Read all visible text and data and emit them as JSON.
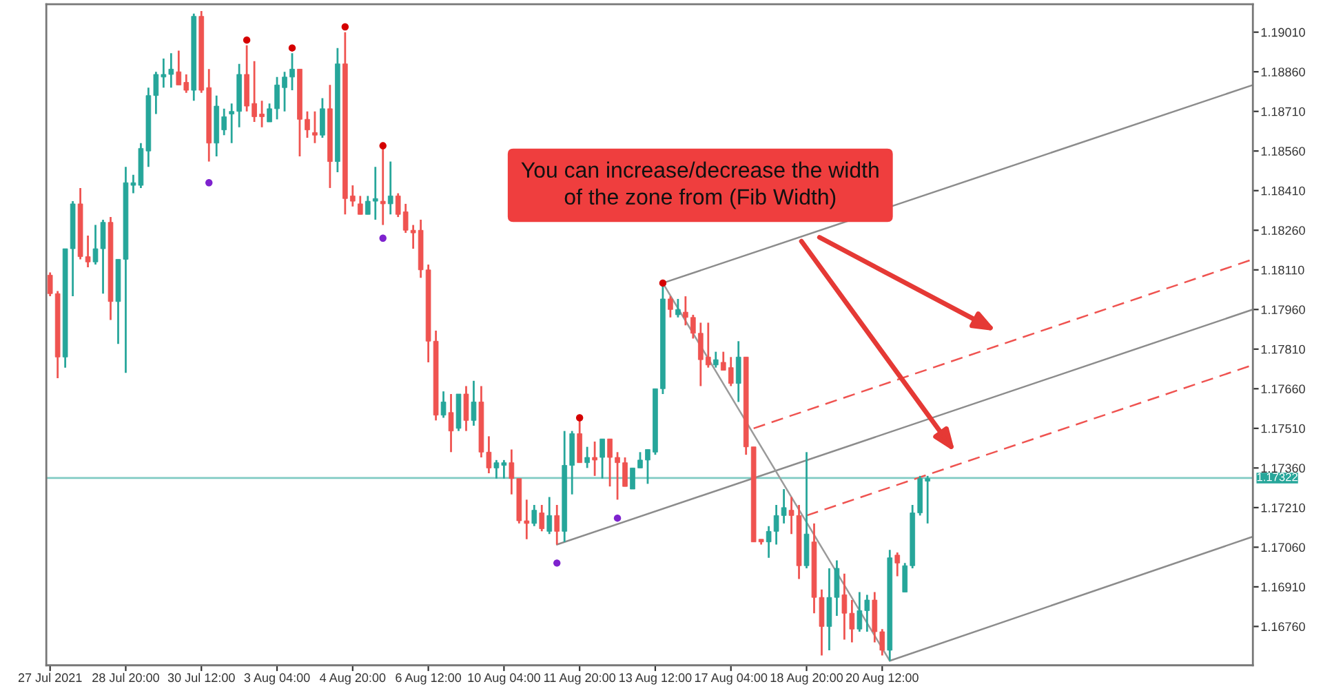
{
  "chart_data": {
    "type": "candlestick",
    "categories": [
      "27 Jul 2021",
      null,
      null,
      null,
      null,
      null,
      null,
      null,
      null,
      null,
      "28 Jul 20:00",
      null,
      null,
      null,
      null,
      null,
      null,
      null,
      null,
      null,
      "30 Jul 12:00",
      null,
      null,
      null,
      null,
      null,
      null,
      null,
      null,
      null,
      "3 Aug 04:00",
      null,
      null,
      null,
      null,
      null,
      null,
      null,
      null,
      null,
      "4 Aug 20:00",
      null,
      null,
      null,
      null,
      null,
      null,
      null,
      null,
      null,
      "6 Aug 12:00",
      null,
      null,
      null,
      null,
      null,
      null,
      null,
      null,
      null,
      "10 Aug 04:00",
      null,
      null,
      null,
      null,
      null,
      null,
      null,
      null,
      null,
      "11 Aug 20:00",
      null,
      null,
      null,
      null,
      null,
      null,
      null,
      null,
      null,
      "13 Aug 12:00",
      null,
      null,
      null,
      null,
      null,
      null,
      null,
      null,
      null,
      "17 Aug 04:00",
      null,
      null,
      null,
      null,
      null,
      null,
      null,
      null,
      null,
      "18 Aug 20:00",
      null,
      null,
      null,
      null,
      null,
      null,
      null,
      null,
      null,
      "20 Aug 12:00",
      null,
      null,
      null,
      null,
      null,
      null,
      null,
      null,
      null,
      null,
      null,
      null,
      null,
      null,
      null,
      null,
      null,
      null,
      null,
      null,
      null,
      null,
      null,
      null,
      null,
      null,
      null,
      null,
      null,
      null,
      null,
      null,
      null,
      null,
      null,
      null,
      null,
      null,
      null,
      null,
      null,
      null,
      null,
      null,
      null,
      null,
      null,
      null,
      null
    ],
    "ohlc": [
      [
        1.1809,
        1.181,
        1.1801,
        1.1802
      ],
      [
        1.1802,
        1.1803,
        1.177,
        1.1778
      ],
      [
        1.1778,
        1.1819,
        1.1774,
        1.1819
      ],
      [
        1.1819,
        1.1837,
        1.1801,
        1.1836
      ],
      [
        1.1836,
        1.1842,
        1.1815,
        1.1816
      ],
      [
        1.1816,
        1.1824,
        1.1812,
        1.1814
      ],
      [
        1.1814,
        1.1828,
        1.1813,
        1.1819
      ],
      [
        1.1819,
        1.183,
        1.1802,
        1.1829
      ],
      [
        1.1829,
        1.1831,
        1.1792,
        1.1799
      ],
      [
        1.1799,
        1.1815,
        1.1783,
        1.1815
      ],
      [
        1.1815,
        1.185,
        1.1772,
        1.1844
      ],
      [
        1.1843,
        1.1847,
        1.184,
        1.1844
      ],
      [
        1.1843,
        1.1859,
        1.1842,
        1.1857
      ],
      [
        1.1856,
        1.188,
        1.185,
        1.1877
      ],
      [
        1.1877,
        1.1886,
        1.187,
        1.1885
      ],
      [
        1.1884,
        1.1891,
        1.188,
        1.1885
      ],
      [
        1.1885,
        1.1893,
        1.188,
        1.1887
      ],
      [
        1.1886,
        1.1894,
        1.1881,
        1.1881
      ],
      [
        1.1882,
        1.1885,
        1.1878,
        1.1879
      ],
      [
        1.1879,
        1.1908,
        1.1875,
        1.1907
      ],
      [
        1.1907,
        1.1909,
        1.1878,
        1.1879
      ],
      [
        1.188,
        1.1887,
        1.1852,
        1.1859
      ],
      [
        1.1859,
        1.1877,
        1.1854,
        1.1873
      ],
      [
        1.1864,
        1.1872,
        1.1862,
        1.1869
      ],
      [
        1.187,
        1.1874,
        1.1859,
        1.1871
      ],
      [
        1.1871,
        1.1889,
        1.1865,
        1.1885
      ],
      [
        1.1885,
        1.1896,
        1.1871,
        1.1873
      ],
      [
        1.1874,
        1.189,
        1.1867,
        1.1869
      ],
      [
        1.187,
        1.1875,
        1.1865,
        1.1869
      ],
      [
        1.1867,
        1.1874,
        1.1867,
        1.1872
      ],
      [
        1.1872,
        1.1884,
        1.1868,
        1.1881
      ],
      [
        1.188,
        1.1886,
        1.1871,
        1.1884
      ],
      [
        1.1884,
        1.1893,
        1.1879,
        1.1887
      ],
      [
        1.1887,
        1.1887,
        1.1854,
        1.1868
      ],
      [
        1.1868,
        1.1871,
        1.1861,
        1.1864
      ],
      [
        1.1863,
        1.1871,
        1.1859,
        1.1862
      ],
      [
        1.1862,
        1.1876,
        1.1861,
        1.1872
      ],
      [
        1.1872,
        1.1881,
        1.1842,
        1.1852
      ],
      [
        1.1852,
        1.1895,
        1.1848,
        1.1889
      ],
      [
        1.1889,
        1.1901,
        1.1832,
        1.1838
      ],
      [
        1.1839,
        1.1843,
        1.1835,
        1.1837
      ],
      [
        1.1836,
        1.1839,
        1.1832,
        1.1832
      ],
      [
        1.1832,
        1.1839,
        1.1832,
        1.1837
      ],
      [
        1.1837,
        1.185,
        1.183,
        1.1838
      ],
      [
        1.1837,
        1.1858,
        1.1828,
        1.1836
      ],
      [
        1.1836,
        1.1852,
        1.1832,
        1.1839
      ],
      [
        1.1839,
        1.184,
        1.1831,
        1.1832
      ],
      [
        1.1833,
        1.1836,
        1.1825,
        1.1826
      ],
      [
        1.1826,
        1.1828,
        1.1819,
        1.1825
      ],
      [
        1.1826,
        1.183,
        1.1808,
        1.1811
      ],
      [
        1.1811,
        1.1813,
        1.1776,
        1.1784
      ],
      [
        1.1784,
        1.1788,
        1.1754,
        1.1756
      ],
      [
        1.1756,
        1.1765,
        1.1755,
        1.1761
      ],
      [
        1.1757,
        1.1764,
        1.1742,
        1.175
      ],
      [
        1.1751,
        1.1764,
        1.175,
        1.1764
      ],
      [
        1.1764,
        1.1767,
        1.175,
        1.1754
      ],
      [
        1.1754,
        1.1769,
        1.1752,
        1.1761
      ],
      [
        1.1761,
        1.1767,
        1.174,
        1.1742
      ],
      [
        1.1742,
        1.1748,
        1.1734,
        1.1736
      ],
      [
        1.1736,
        1.1739,
        1.1732,
        1.1738
      ],
      [
        1.1737,
        1.1739,
        1.1732,
        1.1738
      ],
      [
        1.1738,
        1.1743,
        1.1726,
        1.1732
      ],
      [
        1.1732,
        1.1732,
        1.1715,
        1.1716
      ],
      [
        1.1716,
        1.1724,
        1.1709,
        1.1715
      ],
      [
        1.1715,
        1.1722,
        1.1714,
        1.172
      ],
      [
        1.1719,
        1.1722,
        1.1712,
        1.1713
      ],
      [
        1.1712,
        1.1725,
        1.1711,
        1.1718
      ],
      [
        1.1718,
        1.1722,
        1.1707,
        1.1712
      ],
      [
        1.1712,
        1.175,
        1.1708,
        1.1737
      ],
      [
        1.1737,
        1.175,
        1.1726,
        1.1749
      ],
      [
        1.1749,
        1.1754,
        1.1738,
        1.1738
      ],
      [
        1.1738,
        1.1744,
        1.1736,
        1.174
      ],
      [
        1.174,
        1.1746,
        1.1733,
        1.1739
      ],
      [
        1.174,
        1.1747,
        1.1732,
        1.1747
      ],
      [
        1.1747,
        1.1747,
        1.1729,
        1.174
      ],
      [
        1.174,
        1.1742,
        1.1724,
        1.1738
      ],
      [
        1.1738,
        1.174,
        1.1729,
        1.1729
      ],
      [
        1.1728,
        1.1736,
        1.1728,
        1.1736
      ],
      [
        1.1736,
        1.1742,
        1.1736,
        1.1739
      ],
      [
        1.1739,
        1.1743,
        1.173,
        1.1743
      ],
      [
        1.1742,
        1.1766,
        1.1741,
        1.1766
      ],
      [
        1.1766,
        1.1806,
        1.1764,
        1.18
      ],
      [
        1.18,
        1.1801,
        1.1793,
        1.1796
      ],
      [
        1.1794,
        1.18,
        1.1793,
        1.1796
      ],
      [
        1.1795,
        1.1801,
        1.179,
        1.1793
      ],
      [
        1.1793,
        1.1794,
        1.1785,
        1.1787
      ],
      [
        1.1787,
        1.1791,
        1.1767,
        1.1777
      ],
      [
        1.1778,
        1.1791,
        1.1774,
        1.1775
      ],
      [
        1.1775,
        1.178,
        1.1774,
        1.1777
      ],
      [
        1.1776,
        1.178,
        1.1773,
        1.1773
      ],
      [
        1.1774,
        1.1778,
        1.1767,
        1.1768
      ],
      [
        1.1768,
        1.1784,
        1.1761,
        1.1778
      ],
      [
        1.1778,
        1.1778,
        1.1741,
        1.1744
      ],
      [
        1.1744,
        1.1744,
        1.1708,
        1.1708
      ],
      [
        1.1709,
        1.1709,
        1.1707,
        1.1708
      ],
      [
        1.1708,
        1.1714,
        1.1702,
        1.1712
      ],
      [
        1.1712,
        1.1722,
        1.1707,
        1.1718
      ],
      [
        1.1718,
        1.1728,
        1.1715,
        1.1721
      ],
      [
        1.172,
        1.1725,
        1.1711,
        1.1718
      ],
      [
        1.1718,
        1.1722,
        1.1694,
        1.1699
      ],
      [
        1.1699,
        1.1742,
        1.1698,
        1.1711
      ],
      [
        1.1708,
        1.1715,
        1.1681,
        1.1687
      ],
      [
        1.1687,
        1.169,
        1.1665,
        1.1676
      ],
      [
        1.1676,
        1.1698,
        1.1667,
        1.1687
      ],
      [
        1.1687,
        1.1701,
        1.168,
        1.1698
      ],
      [
        1.1688,
        1.1696,
        1.1671,
        1.1681
      ],
      [
        1.1681,
        1.1686,
        1.167,
        1.1675
      ],
      [
        1.1675,
        1.1689,
        1.1674,
        1.1682
      ],
      [
        1.1682,
        1.1688,
        1.1674,
        1.1686
      ],
      [
        1.1686,
        1.1689,
        1.167,
        1.1674
      ],
      [
        1.1674,
        1.1675,
        1.1665,
        1.1667
      ],
      [
        1.1667,
        1.1705,
        1.1663,
        1.1702
      ],
      [
        1.1703,
        1.1704,
        1.1695,
        1.17
      ],
      [
        1.1689,
        1.17,
        1.1689,
        1.1699
      ],
      [
        1.1699,
        1.1722,
        1.1698,
        1.1719
      ],
      [
        1.1719,
        1.1733,
        1.1718,
        1.1732
      ],
      [
        1.1731,
        1.1733,
        1.1715,
        1.1732
      ],
      null,
      null,
      null,
      null,
      null,
      null,
      null,
      null,
      null,
      null,
      null,
      null,
      null,
      null,
      null,
      null,
      null,
      null,
      null,
      null,
      null,
      null,
      null,
      null,
      null,
      null,
      null,
      null,
      null,
      null,
      null,
      null,
      null,
      null,
      null,
      null,
      null,
      null,
      null,
      null,
      null,
      null,
      null
    ],
    "colors": [
      "#ef5350",
      "#ef5350",
      "#26a69a",
      "#26a69a",
      "#ef5350",
      "#ef5350",
      "#26a69a",
      "#26a69a",
      "#ef5350",
      "#26a69a",
      "#26a69a",
      "#26a69a",
      "#26a69a",
      "#26a69a",
      "#26a69a",
      "#26a69a",
      "#26a69a",
      "#ef5350",
      "#ef5350",
      "#26a69a",
      "#ef5350",
      "#ef5350",
      "#26a69a",
      "#26a69a",
      "#26a69a",
      "#26a69a",
      "#ef5350",
      "#ef5350",
      "#ef5350",
      "#26a69a",
      "#26a69a",
      "#26a69a",
      "#26a69a",
      "#ef5350",
      "#ef5350",
      "#ef5350",
      "#26a69a",
      "#ef5350",
      "#26a69a",
      "#ef5350",
      "#ef5350",
      "#ef5350",
      "#26a69a",
      "#26a69a",
      "#ef5350",
      "#26a69a",
      "#ef5350",
      "#ef5350",
      "#ef5350",
      "#ef5350",
      "#ef5350",
      "#ef5350",
      "#26a69a",
      "#ef5350",
      "#26a69a",
      "#ef5350",
      "#26a69a",
      "#ef5350",
      "#ef5350",
      "#26a69a",
      "#26a69a",
      "#ef5350",
      "#ef5350",
      "#ef5350",
      "#26a69a",
      "#ef5350",
      "#26a69a",
      "#ef5350",
      "#26a69a",
      "#26a69a",
      "#ef5350",
      "#26a69a",
      "#ef5350",
      "#26a69a",
      "#ef5350",
      "#ef5350",
      "#ef5350",
      "#26a69a",
      "#26a69a",
      "#26a69a",
      "#26a69a",
      "#26a69a",
      "#ef5350",
      "#26a69a",
      "#ef5350",
      "#ef5350",
      "#ef5350",
      "#ef5350",
      "#26a69a",
      "#ef5350",
      "#ef5350",
      "#26a69a",
      "#ef5350",
      "#ef5350",
      "#ef5350",
      "#26a69a",
      "#26a69a",
      "#26a69a",
      "#ef5350",
      "#ef5350",
      "#26a69a",
      "#ef5350",
      "#ef5350",
      "#26a69a",
      "#26a69a",
      "#ef5350",
      "#ef5350",
      "#26a69a",
      "#26a69a",
      "#ef5350",
      "#ef5350",
      "#26a69a",
      "#ef5350",
      "#26a69a",
      "#26a69a",
      "#26a69a",
      "#26a69a",
      null,
      null,
      null,
      null,
      null,
      null,
      null,
      null,
      null,
      null,
      null,
      null,
      null,
      null,
      null,
      null,
      null,
      null,
      null,
      null,
      null,
      null,
      null,
      null,
      null,
      null,
      null,
      null,
      null,
      null,
      null,
      null,
      null,
      null,
      null,
      null,
      null,
      null,
      null,
      null,
      null,
      null,
      null
    ],
    "series": [
      {
        "type": "line",
        "color": "#8c8c8c",
        "line_style": "solid",
        "values": [
          null,
          null,
          null,
          null,
          null,
          null,
          null,
          null,
          null,
          null,
          null,
          null,
          null,
          null,
          null,
          null,
          null,
          null,
          null,
          null,
          null,
          null,
          null,
          null,
          null,
          null,
          null,
          null,
          null,
          null,
          null,
          null,
          null,
          null,
          null,
          null,
          null,
          null,
          null,
          null,
          null,
          null,
          null,
          null,
          null,
          null,
          null,
          null,
          null,
          null,
          null,
          null,
          null,
          null,
          null,
          null,
          null,
          null,
          null,
          null,
          null,
          null,
          null,
          null,
          null,
          null,
          null,
          1.1707,
          null,
          null,
          null,
          null,
          null,
          null,
          null,
          null,
          null,
          null,
          null,
          null,
          null,
          null,
          null,
          null,
          null,
          null,
          null,
          null,
          null,
          null,
          null,
          null,
          null,
          null,
          null,
          null,
          null,
          null,
          null,
          null,
          null,
          null,
          null,
          null,
          null,
          null,
          null,
          null,
          null,
          null,
          null,
          null,
          null,
          null,
          null,
          null,
          null,
          null,
          null,
          null,
          null,
          null,
          null,
          null,
          null,
          null,
          null,
          null,
          null,
          null,
          null,
          null,
          null,
          null,
          null,
          null,
          null,
          null,
          null,
          null,
          null,
          null,
          null,
          null,
          null,
          null,
          null,
          null,
          null,
          null,
          null,
          null,
          null,
          null,
          null,
          null,
          null,
          null,
          null,
          1.1796
        ]
      },
      {
        "type": "line",
        "color": "#8c8c8c",
        "line_style": "solid",
        "values": [
          null,
          null,
          null,
          null,
          null,
          null,
          null,
          null,
          null,
          null,
          null,
          null,
          null,
          null,
          null,
          null,
          null,
          null,
          null,
          null,
          null,
          null,
          null,
          null,
          null,
          null,
          null,
          null,
          null,
          null,
          null,
          null,
          null,
          null,
          null,
          null,
          null,
          null,
          null,
          null,
          null,
          null,
          null,
          null,
          null,
          null,
          null,
          null,
          null,
          null,
          null,
          null,
          null,
          null,
          null,
          null,
          null,
          null,
          null,
          null,
          null,
          null,
          null,
          null,
          null,
          null,
          null,
          null,
          null,
          null,
          null,
          null,
          null,
          null,
          null,
          null,
          null,
          null,
          null,
          null,
          null,
          1.1806,
          null,
          null,
          null,
          null,
          null,
          null,
          null,
          null,
          null,
          null,
          null,
          null,
          null,
          null,
          null,
          null,
          null,
          null,
          null,
          null,
          null,
          null,
          null,
          null,
          null,
          null,
          null,
          null,
          null,
          null,
          null,
          null,
          null,
          null,
          null,
          null,
          null,
          null,
          null,
          null,
          null,
          null,
          null,
          null,
          null,
          null,
          null,
          null,
          null,
          null,
          null,
          null,
          null,
          null,
          null,
          null,
          null,
          null,
          null,
          null,
          null,
          null,
          null,
          null,
          null,
          null,
          null,
          null,
          null,
          null,
          null,
          null,
          null,
          null,
          null,
          null,
          null,
          1.1881
        ]
      },
      {
        "type": "line",
        "color": "#8c8c8c",
        "line_style": "solid",
        "values": [
          null,
          null,
          null,
          null,
          null,
          null,
          null,
          null,
          null,
          null,
          null,
          null,
          null,
          null,
          null,
          null,
          null,
          null,
          null,
          null,
          null,
          null,
          null,
          null,
          null,
          null,
          null,
          null,
          null,
          null,
          null,
          null,
          null,
          null,
          null,
          null,
          null,
          null,
          null,
          null,
          null,
          null,
          null,
          null,
          null,
          null,
          null,
          null,
          null,
          null,
          null,
          null,
          null,
          null,
          null,
          null,
          null,
          null,
          null,
          null,
          null,
          null,
          null,
          null,
          null,
          null,
          null,
          null,
          null,
          null,
          null,
          null,
          null,
          null,
          null,
          null,
          null,
          null,
          null,
          null,
          null,
          null,
          null,
          null,
          null,
          null,
          null,
          null,
          null,
          null,
          null,
          null,
          null,
          null,
          null,
          null,
          null,
          null,
          null,
          null,
          null,
          null,
          null,
          null,
          null,
          null,
          null,
          null,
          null,
          null,
          null,
          1.1663,
          null,
          null,
          null,
          null,
          null,
          null,
          null,
          null,
          null,
          null,
          null,
          null,
          null,
          null,
          null,
          null,
          null,
          null,
          null,
          null,
          null,
          null,
          null,
          null,
          null,
          null,
          null,
          null,
          null,
          null,
          null,
          null,
          null,
          null,
          null,
          null,
          null,
          null,
          null,
          null,
          null,
          null,
          null,
          null,
          null,
          null,
          null,
          1.171
        ]
      },
      {
        "type": "line",
        "color": "#9a9a9a",
        "line_style": "solid",
        "values": [
          null,
          null,
          null,
          null,
          null,
          null,
          null,
          null,
          null,
          null,
          null,
          null,
          null,
          null,
          null,
          null,
          null,
          null,
          null,
          null,
          null,
          null,
          null,
          null,
          null,
          null,
          null,
          null,
          null,
          null,
          null,
          null,
          null,
          null,
          null,
          null,
          null,
          null,
          null,
          null,
          null,
          null,
          null,
          null,
          null,
          null,
          null,
          null,
          null,
          null,
          null,
          null,
          null,
          null,
          null,
          null,
          null,
          null,
          null,
          null,
          null,
          null,
          null,
          null,
          null,
          null,
          null,
          null,
          null,
          null,
          null,
          null,
          null,
          null,
          null,
          null,
          null,
          null,
          null,
          null,
          null,
          1.1806,
          null,
          null,
          null,
          null,
          null,
          null,
          null,
          null,
          null,
          null,
          null,
          null,
          null,
          null,
          null,
          null,
          null,
          null,
          null,
          null,
          null,
          null,
          null,
          null,
          null,
          null,
          null,
          null,
          null,
          1.1663,
          null,
          null,
          null,
          null,
          null,
          null,
          null,
          null,
          null,
          null,
          null,
          null,
          null,
          null,
          null,
          null,
          null,
          null,
          null,
          null,
          null,
          null,
          null,
          null,
          null,
          null,
          null,
          null,
          null,
          null,
          null,
          null,
          null,
          null,
          null,
          null,
          null,
          null,
          null,
          null,
          null,
          null,
          null,
          null,
          null,
          null,
          null,
          null
        ]
      },
      {
        "type": "line",
        "color": "#ef5350",
        "line_style": "dashed",
        "values": [
          null,
          null,
          null,
          null,
          null,
          null,
          null,
          null,
          null,
          null,
          null,
          null,
          null,
          null,
          null,
          null,
          null,
          null,
          null,
          null,
          null,
          null,
          null,
          null,
          null,
          null,
          null,
          null,
          null,
          null,
          null,
          null,
          null,
          null,
          null,
          null,
          null,
          null,
          null,
          null,
          null,
          null,
          null,
          null,
          null,
          null,
          null,
          null,
          null,
          null,
          null,
          null,
          null,
          null,
          null,
          null,
          null,
          null,
          null,
          null,
          null,
          null,
          null,
          null,
          null,
          null,
          null,
          null,
          null,
          null,
          null,
          null,
          null,
          null,
          null,
          null,
          null,
          null,
          null,
          null,
          null,
          null,
          null,
          null,
          null,
          null,
          null,
          null,
          null,
          null,
          null,
          null,
          null,
          1.1751,
          null,
          null,
          null,
          null,
          null,
          null,
          null,
          null,
          null,
          null,
          null,
          null,
          null,
          null,
          null,
          null,
          null,
          null,
          null,
          null,
          null,
          null,
          null,
          null,
          null,
          null,
          null,
          null,
          null,
          null,
          null,
          null,
          null,
          null,
          null,
          null,
          null,
          null,
          null,
          null,
          null,
          null,
          null,
          null,
          null,
          null,
          null,
          null,
          null,
          null,
          null,
          null,
          null,
          null,
          null,
          null,
          null,
          null,
          null,
          null,
          null,
          null,
          null,
          null,
          null,
          1.1815
        ]
      },
      {
        "type": "line",
        "color": "#ef5350",
        "line_style": "dashed",
        "values": [
          null,
          null,
          null,
          null,
          null,
          null,
          null,
          null,
          null,
          null,
          null,
          null,
          null,
          null,
          null,
          null,
          null,
          null,
          null,
          null,
          null,
          null,
          null,
          null,
          null,
          null,
          null,
          null,
          null,
          null,
          null,
          null,
          null,
          null,
          null,
          null,
          null,
          null,
          null,
          null,
          null,
          null,
          null,
          null,
          null,
          null,
          null,
          null,
          null,
          null,
          null,
          null,
          null,
          null,
          null,
          null,
          null,
          null,
          null,
          null,
          null,
          null,
          null,
          null,
          null,
          null,
          null,
          null,
          null,
          null,
          null,
          null,
          null,
          null,
          null,
          null,
          null,
          null,
          null,
          null,
          null,
          null,
          null,
          null,
          null,
          null,
          null,
          null,
          null,
          null,
          null,
          null,
          null,
          null,
          null,
          null,
          null,
          null,
          null,
          null,
          1.1718,
          null,
          null,
          null,
          null,
          null,
          null,
          null,
          null,
          null,
          null,
          null,
          null,
          null,
          null,
          null,
          null,
          null,
          null,
          null,
          null,
          null,
          null,
          null,
          null,
          null,
          null,
          null,
          null,
          null,
          null,
          null,
          null,
          null,
          null,
          null,
          null,
          null,
          null,
          null,
          null,
          null,
          null,
          null,
          null,
          null,
          null,
          null,
          null,
          null,
          null,
          null,
          null,
          null,
          null,
          null,
          null,
          null,
          null,
          1.1775
        ]
      },
      {
        "type": "scatter",
        "color": "#d50000",
        "marker": "circle",
        "values": [
          null,
          null,
          null,
          null,
          null,
          null,
          null,
          null,
          null,
          null,
          null,
          null,
          null,
          null,
          null,
          null,
          null,
          null,
          null,
          null,
          null,
          null,
          null,
          null,
          null,
          null,
          1.1898,
          null,
          null,
          null,
          null,
          null,
          1.1895,
          null,
          null,
          null,
          null,
          null,
          null,
          1.1903,
          null,
          null,
          null,
          null,
          1.1858,
          null,
          null,
          null,
          null,
          null,
          null,
          null,
          null,
          null,
          null,
          null,
          null,
          null,
          null,
          null,
          null,
          null,
          null,
          null,
          null,
          null,
          null,
          null,
          null,
          null,
          1.1755,
          null,
          null,
          null,
          null,
          null,
          null,
          null,
          null,
          null,
          null,
          1.1806,
          null,
          null,
          null,
          null,
          null,
          null,
          null,
          null,
          null,
          null,
          null,
          null,
          null,
          null,
          null,
          null,
          null,
          null,
          null,
          null,
          null,
          null,
          null,
          null,
          null,
          null,
          null,
          null,
          null,
          null,
          null,
          null,
          null,
          null,
          null,
          null,
          null,
          null,
          null,
          null,
          null,
          null,
          null,
          null,
          null,
          null,
          null,
          null,
          null,
          null,
          null,
          null,
          null,
          null,
          null,
          null,
          null,
          null,
          null,
          null,
          null,
          null,
          null,
          null,
          null,
          null,
          null,
          null,
          null,
          null,
          null,
          null,
          null,
          null,
          null,
          null,
          null,
          null
        ]
      },
      {
        "type": "scatter",
        "color": "#7e22ce",
        "marker": "circle",
        "values": [
          null,
          null,
          null,
          null,
          null,
          null,
          null,
          null,
          null,
          null,
          null,
          null,
          null,
          null,
          null,
          null,
          null,
          null,
          null,
          null,
          null,
          1.1844,
          null,
          null,
          null,
          null,
          null,
          null,
          null,
          null,
          null,
          null,
          null,
          null,
          null,
          null,
          null,
          null,
          null,
          null,
          null,
          null,
          null,
          null,
          1.1823,
          null,
          null,
          null,
          null,
          null,
          null,
          null,
          null,
          null,
          null,
          null,
          null,
          null,
          null,
          null,
          null,
          null,
          null,
          null,
          null,
          null,
          null,
          1.17,
          null,
          null,
          null,
          null,
          null,
          null,
          null,
          1.1717,
          null,
          null,
          null,
          null,
          null,
          null,
          null,
          null,
          null,
          null,
          null,
          null,
          null,
          null,
          null,
          null,
          null,
          null,
          null,
          null,
          null,
          null,
          null,
          null,
          null,
          null,
          null,
          null,
          null,
          null,
          null,
          null,
          null,
          null,
          null,
          null,
          null,
          null,
          null,
          null,
          null,
          null,
          null,
          null,
          null,
          null,
          null,
          null,
          null,
          null,
          null,
          null,
          null,
          null,
          null,
          null,
          null,
          null,
          null,
          null,
          null,
          null,
          null,
          null,
          null,
          null,
          null,
          null,
          null,
          null,
          null,
          null,
          null,
          null,
          null,
          null,
          null,
          null,
          null,
          null,
          null,
          null,
          null,
          null
        ]
      }
    ],
    "ylim": [
      1.16613,
      1.19116
    ],
    "yticks": [
      {
        "value": 1.1901,
        "label": "1.19010"
      },
      {
        "value": 1.1886,
        "label": "1.18860"
      },
      {
        "value": 1.1871,
        "label": "1.18710"
      },
      {
        "value": 1.1856,
        "label": "1.18560"
      },
      {
        "value": 1.1841,
        "label": "1.18410"
      },
      {
        "value": 1.1826,
        "label": "1.18260"
      },
      {
        "value": 1.1811,
        "label": "1.18110"
      },
      {
        "value": 1.1796,
        "label": "1.17960"
      },
      {
        "value": 1.1781,
        "label": "1.17810"
      },
      {
        "value": 1.1766,
        "label": "1.17660"
      },
      {
        "value": 1.1751,
        "label": "1.17510"
      },
      {
        "value": 1.1736,
        "label": "1.17360"
      },
      {
        "value": 1.1721,
        "label": "1.17210"
      },
      {
        "value": 1.1706,
        "label": "1.17060"
      },
      {
        "value": 1.1691,
        "label": "1.16910"
      },
      {
        "value": 1.1676,
        "label": "1.16760"
      }
    ],
    "ref_lines": [
      {
        "axis": "y",
        "value": 1.17322,
        "label": "1.17322",
        "color": "#80cbc4"
      }
    ],
    "annotations": [
      "You can increase/decrease the width\nof the zone from (Fib Width)"
    ]
  }
}
